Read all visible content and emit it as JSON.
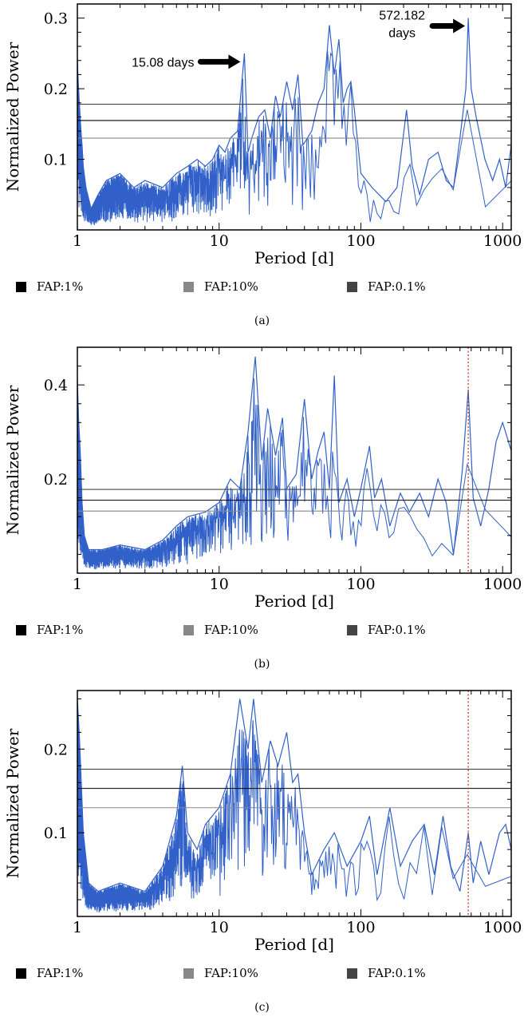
{
  "chart_data": [
    {
      "type": "line",
      "panel": "(a)",
      "xlabel": "Period [d]",
      "ylabel": "Normalized Power",
      "x_scale": "log",
      "xlim": [
        1,
        1150
      ],
      "ylim": [
        0,
        0.32
      ],
      "x_ticks": [
        1,
        10,
        100,
        1000
      ],
      "x_tick_labels": [
        "1",
        "10",
        "100",
        "1000"
      ],
      "y_ticks": [
        0.1,
        0.2,
        0.3
      ],
      "y_tick_labels": [
        "0.1",
        "0.2",
        "0.3"
      ],
      "fap_levels": [
        {
          "name": "FAP:1%",
          "value": 0.155,
          "color": "#000000"
        },
        {
          "name": "FAP:10%",
          "value": 0.13,
          "color": "#888888"
        },
        {
          "name": "FAP:0.1%",
          "value": 0.178,
          "color": "#444444"
        }
      ],
      "series": [
        {
          "color": "#3060c8",
          "points": [
            [
              1.0,
              0.24
            ],
            [
              1.02,
              0.2
            ],
            [
              1.04,
              0.17
            ],
            [
              1.06,
              0.14
            ],
            [
              1.08,
              0.12
            ],
            [
              1.1,
              0.09
            ],
            [
              1.15,
              0.06
            ],
            [
              1.25,
              0.03
            ],
            [
              1.4,
              0.05
            ],
            [
              1.6,
              0.07
            ],
            [
              2.0,
              0.08
            ],
            [
              2.5,
              0.06
            ],
            [
              3.0,
              0.07
            ],
            [
              4.0,
              0.06
            ],
            [
              5.0,
              0.08
            ],
            [
              6.0,
              0.09
            ],
            [
              7.0,
              0.1
            ],
            [
              8.0,
              0.09
            ],
            [
              9.0,
              0.1
            ],
            [
              10.0,
              0.12
            ],
            [
              11.0,
              0.11
            ],
            [
              12.0,
              0.13
            ],
            [
              13.5,
              0.14
            ],
            [
              15.08,
              0.25
            ],
            [
              16.0,
              0.11
            ],
            [
              17.0,
              0.13
            ],
            [
              19.0,
              0.16
            ],
            [
              21.0,
              0.17
            ],
            [
              23.0,
              0.13
            ],
            [
              25.0,
              0.19
            ],
            [
              27.0,
              0.16
            ],
            [
              30.0,
              0.21
            ],
            [
              33.0,
              0.17
            ],
            [
              36.0,
              0.22
            ],
            [
              39.0,
              0.12
            ],
            [
              45.0,
              0.14
            ],
            [
              50.0,
              0.18
            ],
            [
              55.0,
              0.2
            ],
            [
              60.0,
              0.29
            ],
            [
              65.0,
              0.22
            ],
            [
              70.0,
              0.27
            ],
            [
              75.0,
              0.18
            ],
            [
              80.0,
              0.2
            ],
            [
              85.0,
              0.21
            ],
            [
              90.0,
              0.17
            ],
            [
              100.0,
              0.08
            ],
            [
              120.0,
              0.06
            ],
            [
              150.0,
              0.04
            ],
            [
              180.0,
              0.06
            ],
            [
              210.0,
              0.17
            ],
            [
              230.0,
              0.09
            ],
            [
              260.0,
              0.05
            ],
            [
              300.0,
              0.1
            ],
            [
              350.0,
              0.11
            ],
            [
              400.0,
              0.07
            ],
            [
              450.0,
              0.06
            ],
            [
              500.0,
              0.13
            ],
            [
              550.0,
              0.2
            ],
            [
              572.182,
              0.3
            ],
            [
              600.0,
              0.2
            ],
            [
              650.0,
              0.16
            ],
            [
              750.0,
              0.1
            ],
            [
              850.0,
              0.07
            ],
            [
              950.0,
              0.1
            ],
            [
              1050.0,
              0.06
            ],
            [
              1150.0,
              0.12
            ]
          ],
          "noise_seed": 7
        }
      ],
      "annotations": [
        {
          "text": "15.08 days",
          "x": 15.08,
          "y": 0.245
        },
        {
          "text": "572.182",
          "text2": "days",
          "x": 572.182,
          "y": 0.298
        }
      ]
    },
    {
      "type": "line",
      "panel": "(b)",
      "xlabel": "Period [d]",
      "ylabel": "Normalized Power",
      "x_scale": "log",
      "xlim": [
        1,
        1150
      ],
      "ylim": [
        0,
        0.48
      ],
      "x_ticks": [
        1,
        10,
        100,
        1000
      ],
      "x_tick_labels": [
        "1",
        "10",
        "100",
        "1000"
      ],
      "y_ticks": [
        0.2,
        0.4
      ],
      "y_tick_labels": [
        "0.2",
        "0.4"
      ],
      "fap_levels": [
        {
          "name": "FAP:1%",
          "value": 0.155,
          "color": "#000000"
        },
        {
          "name": "FAP:10%",
          "value": 0.132,
          "color": "#888888"
        },
        {
          "name": "FAP:0.1%",
          "value": 0.178,
          "color": "#444444"
        }
      ],
      "reference_period": 572.182,
      "series": [
        {
          "color": "#3060c8",
          "points": [
            [
              1.0,
              0.41
            ],
            [
              1.02,
              0.33
            ],
            [
              1.05,
              0.25
            ],
            [
              1.08,
              0.15
            ],
            [
              1.12,
              0.08
            ],
            [
              1.2,
              0.05
            ],
            [
              1.5,
              0.05
            ],
            [
              2.0,
              0.06
            ],
            [
              3.0,
              0.05
            ],
            [
              4.0,
              0.07
            ],
            [
              5.0,
              0.1
            ],
            [
              6.0,
              0.12
            ],
            [
              8.0,
              0.13
            ],
            [
              10.0,
              0.15
            ],
            [
              12.0,
              0.2
            ],
            [
              14.0,
              0.18
            ],
            [
              16.0,
              0.3
            ],
            [
              18.0,
              0.46
            ],
            [
              20.0,
              0.24
            ],
            [
              22.0,
              0.35
            ],
            [
              25.0,
              0.25
            ],
            [
              28.0,
              0.33
            ],
            [
              30.0,
              0.18
            ],
            [
              35.0,
              0.21
            ],
            [
              40.0,
              0.37
            ],
            [
              45.0,
              0.2
            ],
            [
              50.0,
              0.26
            ],
            [
              55.0,
              0.3
            ],
            [
              60.0,
              0.18
            ],
            [
              65.0,
              0.42
            ],
            [
              70.0,
              0.15
            ],
            [
              80.0,
              0.2
            ],
            [
              90.0,
              0.12
            ],
            [
              100.0,
              0.18
            ],
            [
              115.0,
              0.27
            ],
            [
              125.0,
              0.16
            ],
            [
              140.0,
              0.2
            ],
            [
              160.0,
              0.1
            ],
            [
              190.0,
              0.17
            ],
            [
              220.0,
              0.13
            ],
            [
              260.0,
              0.17
            ],
            [
              300.0,
              0.12
            ],
            [
              350.0,
              0.2
            ],
            [
              400.0,
              0.15
            ],
            [
              450.0,
              0.04
            ],
            [
              520.0,
              0.22
            ],
            [
              572.182,
              0.39
            ],
            [
              620.0,
              0.16
            ],
            [
              700.0,
              0.1
            ],
            [
              800.0,
              0.18
            ],
            [
              900.0,
              0.28
            ],
            [
              1000.0,
              0.32
            ],
            [
              1150.0,
              0.26
            ]
          ],
          "noise_seed": 13
        }
      ]
    },
    {
      "type": "line",
      "panel": "(c)",
      "xlabel": "Period [d]",
      "ylabel": "Normalized Power",
      "x_scale": "log",
      "xlim": [
        1,
        1150
      ],
      "ylim": [
        0,
        0.27
      ],
      "x_ticks": [
        1,
        10,
        100,
        1000
      ],
      "x_tick_labels": [
        "1",
        "10",
        "100",
        "1000"
      ],
      "y_ticks": [
        0.1,
        0.2
      ],
      "y_tick_labels": [
        "0.1",
        "0.2"
      ],
      "fap_levels": [
        {
          "name": "FAP:1%",
          "value": 0.153,
          "color": "#000000"
        },
        {
          "name": "FAP:10%",
          "value": 0.13,
          "color": "#888888"
        },
        {
          "name": "FAP:0.1%",
          "value": 0.176,
          "color": "#444444"
        }
      ],
      "reference_period": 572.182,
      "series": [
        {
          "color": "#3060c8",
          "points": [
            [
              1.0,
              0.26
            ],
            [
              1.03,
              0.22
            ],
            [
              1.06,
              0.17
            ],
            [
              1.1,
              0.1
            ],
            [
              1.15,
              0.07
            ],
            [
              1.2,
              0.04
            ],
            [
              1.4,
              0.03
            ],
            [
              2.0,
              0.04
            ],
            [
              3.0,
              0.03
            ],
            [
              4.0,
              0.06
            ],
            [
              5.0,
              0.12
            ],
            [
              5.5,
              0.18
            ],
            [
              6.0,
              0.1
            ],
            [
              7.0,
              0.08
            ],
            [
              8.0,
              0.11
            ],
            [
              10.0,
              0.13
            ],
            [
              12.0,
              0.17
            ],
            [
              14.0,
              0.26
            ],
            [
              16.0,
              0.2
            ],
            [
              17.5,
              0.26
            ],
            [
              20.0,
              0.16
            ],
            [
              23.0,
              0.21
            ],
            [
              26.0,
              0.18
            ],
            [
              30.0,
              0.22
            ],
            [
              33.0,
              0.16
            ],
            [
              36.0,
              0.17
            ],
            [
              40.0,
              0.1
            ],
            [
              45.0,
              0.05
            ],
            [
              55.0,
              0.08
            ],
            [
              65.0,
              0.1
            ],
            [
              80.0,
              0.06
            ],
            [
              100.0,
              0.09
            ],
            [
              115.0,
              0.12
            ],
            [
              130.0,
              0.05
            ],
            [
              160.0,
              0.13
            ],
            [
              190.0,
              0.06
            ],
            [
              230.0,
              0.09
            ],
            [
              280.0,
              0.11
            ],
            [
              330.0,
              0.05
            ],
            [
              380.0,
              0.12
            ],
            [
              430.0,
              0.06
            ],
            [
              500.0,
              0.03
            ],
            [
              572.182,
              0.1
            ],
            [
              620.0,
              0.04
            ],
            [
              700.0,
              0.09
            ],
            [
              800.0,
              0.05
            ],
            [
              950.0,
              0.1
            ],
            [
              1050.0,
              0.11
            ],
            [
              1150.0,
              0.08
            ]
          ],
          "noise_seed": 29
        }
      ]
    }
  ],
  "legend": {
    "fap1": "FAP:1%",
    "fap10": "FAP:10%",
    "fap01": "FAP:0.1%"
  },
  "captions": {
    "a": "(a)",
    "b": "(b)",
    "c": "(c)"
  },
  "colors": {
    "series": "#3060c8",
    "fap1": "#000000",
    "fap10": "#888888",
    "fap01": "#444444",
    "reference_line": "#c0392b"
  }
}
